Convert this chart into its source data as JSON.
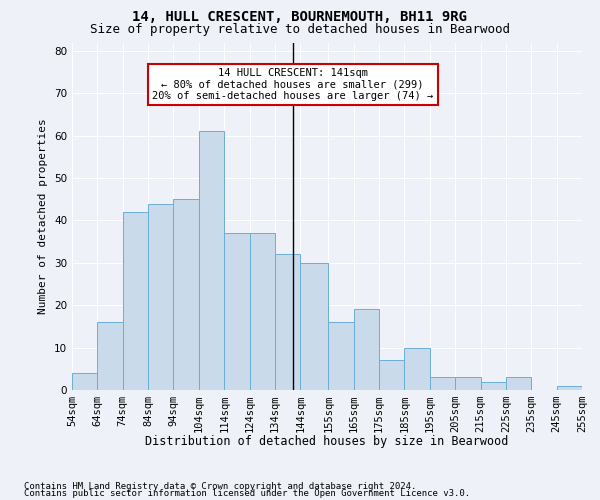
{
  "title1": "14, HULL CRESCENT, BOURNEMOUTH, BH11 9RG",
  "title2": "Size of property relative to detached houses in Bearwood",
  "xlabel": "Distribution of detached houses by size in Bearwood",
  "ylabel": "Number of detached properties",
  "bins": [
    54,
    64,
    74,
    84,
    94,
    104,
    114,
    124,
    134,
    144,
    155,
    165,
    175,
    185,
    195,
    205,
    215,
    225,
    235,
    245,
    255
  ],
  "bar_heights": [
    4,
    16,
    42,
    44,
    45,
    61,
    37,
    37,
    32,
    30,
    16,
    19,
    7,
    10,
    3,
    3,
    2,
    3,
    0,
    1
  ],
  "bar_color": "#c9daea",
  "bar_edgecolor": "#6aaed6",
  "property_line_x": 141,
  "ylim": [
    0,
    82
  ],
  "yticks": [
    0,
    10,
    20,
    30,
    40,
    50,
    60,
    70,
    80
  ],
  "xtick_labels": [
    "54sqm",
    "64sqm",
    "74sqm",
    "84sqm",
    "94sqm",
    "104sqm",
    "114sqm",
    "124sqm",
    "134sqm",
    "144sqm",
    "155sqm",
    "165sqm",
    "175sqm",
    "185sqm",
    "195sqm",
    "205sqm",
    "215sqm",
    "225sqm",
    "235sqm",
    "245sqm",
    "255sqm"
  ],
  "annotation_text": "14 HULL CRESCENT: 141sqm\n← 80% of detached houses are smaller (299)\n20% of semi-detached houses are larger (74) →",
  "annotation_box_color": "#ffffff",
  "annotation_box_edgecolor": "#cc0000",
  "footer1": "Contains HM Land Registry data © Crown copyright and database right 2024.",
  "footer2": "Contains public sector information licensed under the Open Government Licence v3.0.",
  "background_color": "#eef2f8",
  "grid_color": "#ffffff",
  "title1_fontsize": 10,
  "title2_fontsize": 9,
  "ylabel_fontsize": 8,
  "xlabel_fontsize": 8.5,
  "tick_fontsize": 7.5,
  "annot_fontsize": 7.5,
  "footer_fontsize": 6.5
}
